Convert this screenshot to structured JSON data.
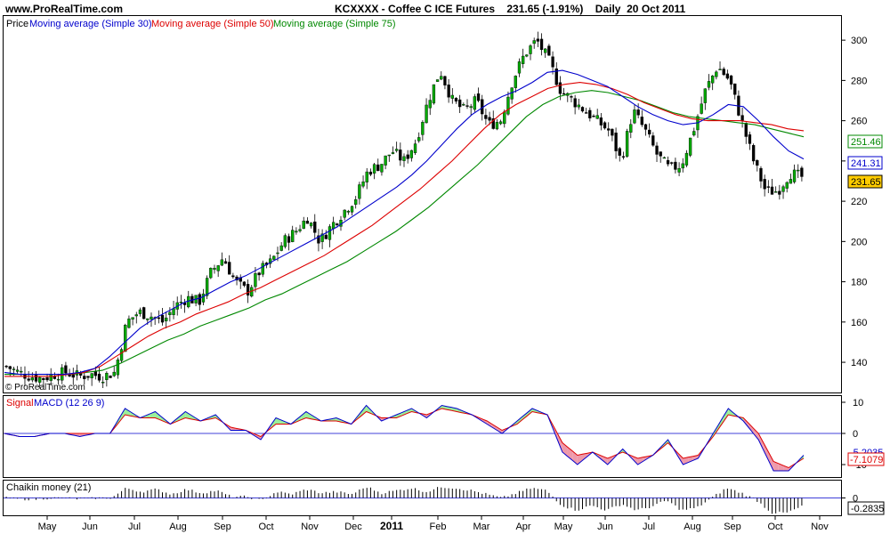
{
  "header": {
    "site": "www.ProRealTime.com",
    "symbol": "KCXXXX - Coffee C ICE Futures",
    "price": "231.65 (-1.91%)",
    "period": "Daily  20 Oct 2011"
  },
  "price_panel": {
    "legend": {
      "price": "Price",
      "ma30": "Moving average (Simple 30)",
      "ma50": "Moving average (Simple 50)",
      "ma75": "Moving average (Simple 75)"
    },
    "watermark": "© ProRealTime.com",
    "badges": {
      "ma75": "251.46",
      "ma30": "241.31",
      "price": "231.65"
    }
  },
  "macd_panel": {
    "legend": {
      "signal": "Signal",
      "macd": "MACD (12 26 9)"
    },
    "badges": {
      "top": "-5.2035",
      "bottom": "-7.1079"
    }
  },
  "chaikin_panel": {
    "legend": "Chaikin money (21)",
    "badge": "-0.2835"
  },
  "chart_data": {
    "type": "candlestick",
    "colors": {
      "ma30": "#0000cc",
      "ma50": "#dd0000",
      "ma75": "#008800",
      "up": "#00aa00",
      "down": "#000000",
      "macd_pos_fill": "#99ee99",
      "macd_neg_fill": "#ee99aa",
      "price_badge": "#ffcc00"
    },
    "x_ticks": [
      "May",
      "Jun",
      "Jul",
      "Aug",
      "Sep",
      "Oct",
      "Nov",
      "Dec",
      "2011",
      "Feb",
      "Mar",
      "Apr",
      "May",
      "Jun",
      "Jul",
      "Aug",
      "Sep",
      "Oct",
      "Nov"
    ],
    "price": {
      "y_ticks": [
        140,
        160,
        180,
        200,
        220,
        240,
        260,
        280,
        300
      ],
      "ylim": [
        125,
        312
      ],
      "close_path": [
        138,
        135,
        133,
        132,
        134,
        135,
        133,
        134,
        133,
        135,
        160,
        165,
        163,
        160,
        168,
        172,
        170,
        185,
        192,
        180,
        175,
        185,
        190,
        200,
        205,
        212,
        200,
        208,
        215,
        222,
        235,
        238,
        245,
        240,
        250,
        270,
        285,
        270,
        265,
        270,
        258,
        260,
        280,
        293,
        300,
        290,
        275,
        270,
        265,
        260,
        255,
        240,
        265,
        255,
        243,
        236,
        238,
        255,
        275,
        287,
        280,
        260,
        240,
        225,
        225,
        234,
        232
      ],
      "ma30": [
        135,
        134,
        134,
        134,
        134,
        135,
        137,
        143,
        150,
        157,
        162,
        166,
        170,
        172,
        176,
        180,
        183,
        187,
        191,
        195,
        199,
        203,
        207,
        212,
        217,
        222,
        227,
        233,
        240,
        248,
        256,
        263,
        268,
        272,
        275,
        279,
        284,
        285,
        283,
        280,
        277,
        272,
        267,
        263,
        260,
        258,
        259,
        263,
        268,
        267,
        260,
        252,
        245,
        241
      ],
      "ma50": [
        133,
        133,
        133,
        133,
        134,
        135,
        138,
        143,
        148,
        153,
        157,
        160,
        164,
        167,
        170,
        174,
        177,
        181,
        185,
        189,
        193,
        198,
        203,
        208,
        214,
        220,
        226,
        233,
        240,
        248,
        256,
        263,
        268,
        272,
        276,
        278,
        279,
        278,
        276,
        273,
        269,
        266,
        263,
        261,
        260,
        260,
        260,
        259,
        258,
        256,
        255
      ],
      "ma75": [
        134,
        134,
        134,
        134,
        134,
        135,
        136,
        139,
        143,
        147,
        151,
        154,
        158,
        161,
        164,
        167,
        171,
        174,
        178,
        182,
        186,
        190,
        195,
        200,
        205,
        211,
        217,
        224,
        231,
        238,
        246,
        254,
        262,
        268,
        272,
        274,
        275,
        274,
        272,
        270,
        267,
        264,
        262,
        261,
        260,
        259,
        258,
        256,
        254,
        252
      ]
    },
    "macd": {
      "y_ticks": [
        -10,
        0,
        10
      ],
      "ylim": [
        -14,
        12
      ],
      "macd": [
        0,
        -1,
        -1,
        0,
        0,
        -1,
        0,
        0,
        8,
        5,
        7,
        3,
        7,
        4,
        6,
        1,
        1,
        -2,
        5,
        3,
        7,
        4,
        5,
        3,
        9,
        4,
        6,
        8,
        5,
        9,
        8,
        6,
        3,
        0,
        4,
        8,
        6,
        -6,
        -10,
        -6,
        -10,
        -5,
        -10,
        -7,
        -2,
        -10,
        -8,
        0,
        8,
        4,
        -2,
        -12,
        -12,
        -7
      ],
      "signal": [
        0,
        -1,
        -1,
        0,
        0,
        0,
        0,
        0,
        6,
        5,
        5,
        3,
        5,
        4,
        5,
        2,
        1,
        -1,
        3,
        3,
        5,
        4,
        4,
        3,
        7,
        5,
        5,
        7,
        6,
        8,
        7,
        6,
        4,
        1,
        3,
        7,
        6,
        -3,
        -7,
        -6,
        -8,
        -6,
        -8,
        -7,
        -3,
        -8,
        -7,
        -1,
        6,
        5,
        0,
        -9,
        -11,
        -8
      ]
    },
    "chaikin": {
      "y_ticks": [
        0
      ],
      "ylim": [
        -0.35,
        0.35
      ]
    }
  }
}
